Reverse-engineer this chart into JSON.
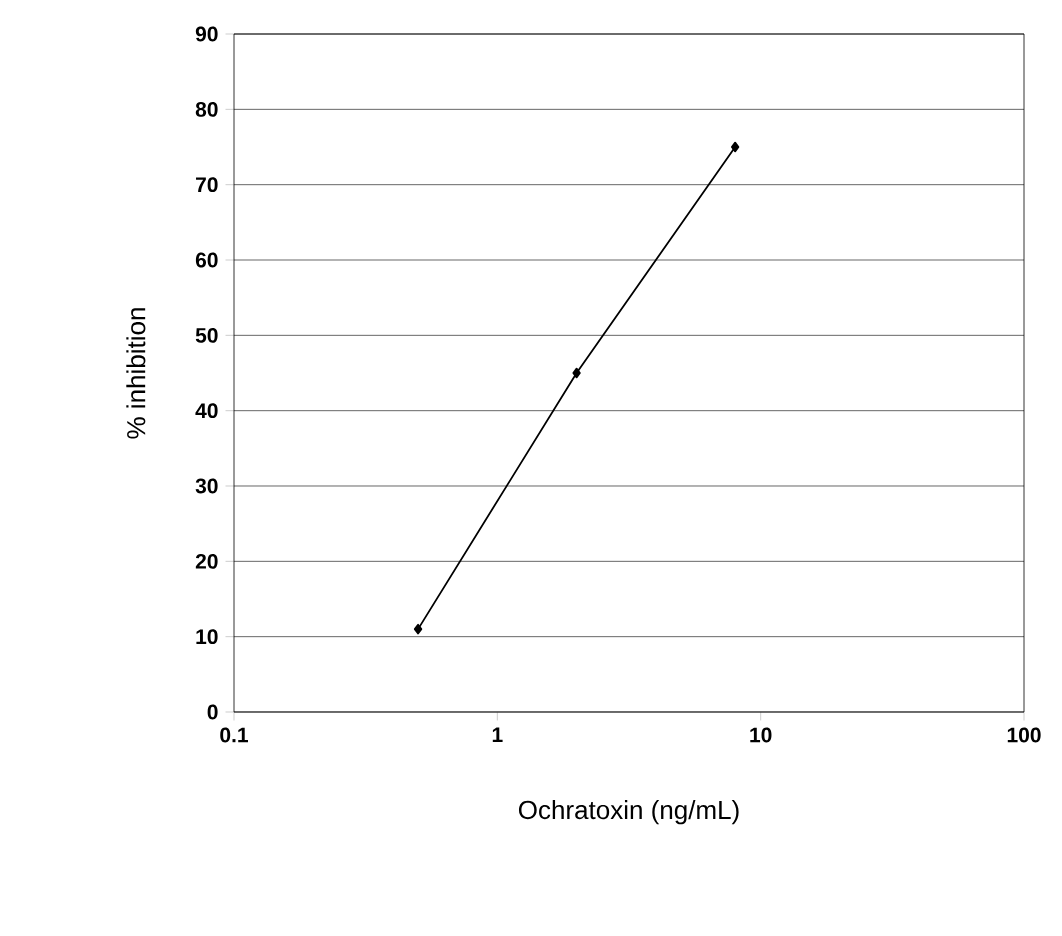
{
  "chart_data": {
    "type": "line",
    "xlabel": "Ochratoxin (ng/mL)",
    "ylabel": "% inhibition",
    "x": [
      0.5,
      2,
      8
    ],
    "values": [
      11,
      45,
      75
    ],
    "color": "#000000",
    "log": "x",
    "xlim": [
      0.1,
      100
    ],
    "xticks": [
      0.1,
      1,
      10,
      100
    ],
    "ylim": [
      0,
      90
    ],
    "yticks": [
      0,
      10,
      20,
      30,
      40,
      50,
      60,
      70,
      80,
      90
    ],
    "grid": "y",
    "marker": "diamond",
    "line_style": "solid"
  }
}
